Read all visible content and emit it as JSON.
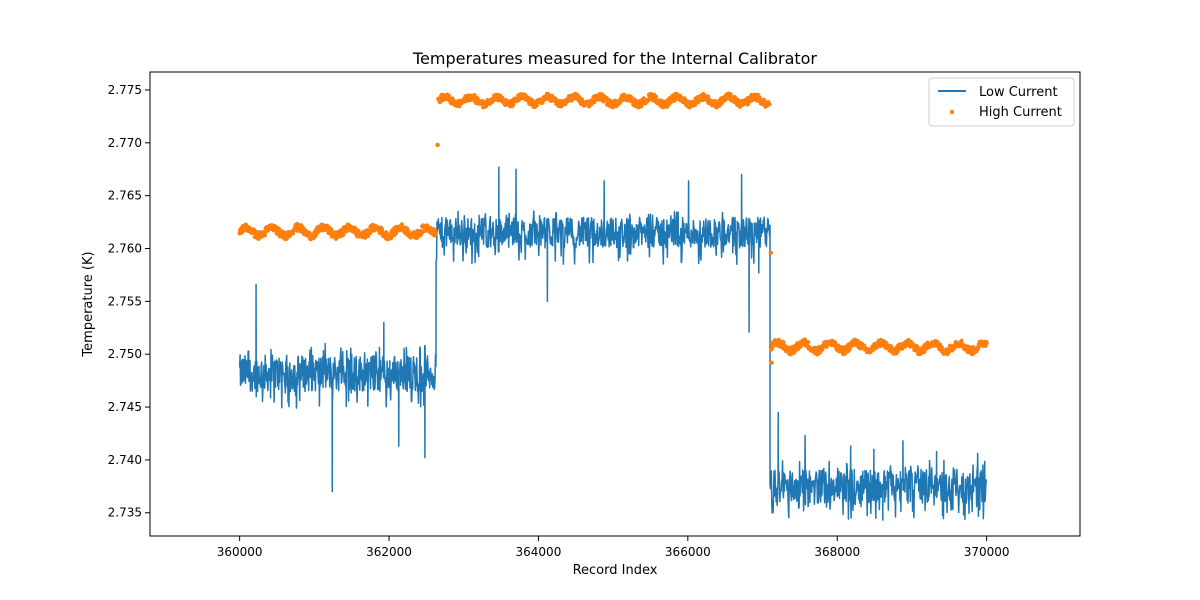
{
  "chart_data": {
    "type": "line",
    "title": "Temperatures measured for the Internal Calibrator",
    "xlabel": "Record Index",
    "ylabel": "Temperature (K)",
    "xlim": [
      358800,
      371250
    ],
    "ylim": [
      2.7328,
      2.7767
    ],
    "xticks": [
      360000,
      362000,
      364000,
      366000,
      368000,
      370000
    ],
    "yticks": [
      2.735,
      2.74,
      2.745,
      2.75,
      2.755,
      2.76,
      2.765,
      2.77,
      2.775
    ],
    "ytick_labels": [
      "2.735",
      "2.740",
      "2.745",
      "2.750",
      "2.755",
      "2.760",
      "2.765",
      "2.770",
      "2.775"
    ],
    "legend": {
      "location": "top-right",
      "entries": [
        "Low Current",
        "High Current"
      ]
    },
    "series": [
      {
        "name": "Low Current",
        "kind": "line",
        "color": "#1f77b4",
        "segments": [
          {
            "x_start": 360000,
            "x_end": 362630,
            "center": 2.7482,
            "band_low": 2.7465,
            "band_high": 2.75
          },
          {
            "x_start": 362630,
            "x_end": 367100,
            "center": 2.7615,
            "band_low": 2.7598,
            "band_high": 2.7627
          },
          {
            "x_start": 367100,
            "x_end": 370000,
            "center": 2.7375,
            "band_low": 2.7358,
            "band_high": 2.739
          }
        ],
        "spikes": [
          {
            "x": 361240,
            "y": 2.737
          },
          {
            "x": 360220,
            "y": 2.7566
          },
          {
            "x": 362130,
            "y": 2.7413
          },
          {
            "x": 362480,
            "y": 2.7402
          },
          {
            "x": 360760,
            "y": 2.7449
          },
          {
            "x": 361930,
            "y": 2.753
          },
          {
            "x": 363470,
            "y": 2.7677
          },
          {
            "x": 363700,
            "y": 2.7675
          },
          {
            "x": 364120,
            "y": 2.755
          },
          {
            "x": 364880,
            "y": 2.7664
          },
          {
            "x": 366010,
            "y": 2.7664
          },
          {
            "x": 366820,
            "y": 2.7521
          },
          {
            "x": 366720,
            "y": 2.767
          },
          {
            "x": 366950,
            "y": 2.7577
          },
          {
            "x": 367210,
            "y": 2.7445
          },
          {
            "x": 367570,
            "y": 2.7423
          },
          {
            "x": 368180,
            "y": 2.7413
          },
          {
            "x": 368490,
            "y": 2.741
          },
          {
            "x": 368880,
            "y": 2.7418
          },
          {
            "x": 369330,
            "y": 2.7408
          },
          {
            "x": 369880,
            "y": 2.7406
          },
          {
            "x": 368610,
            "y": 2.7343
          }
        ]
      },
      {
        "name": "High Current",
        "kind": "scatter",
        "color": "#ff7f0e",
        "segments": [
          {
            "x_start": 360000,
            "x_end": 362620,
            "center": 2.7616,
            "band_low": 2.761,
            "band_high": 2.7621
          },
          {
            "x_start": 362660,
            "x_end": 367090,
            "center": 2.774,
            "band_low": 2.7735,
            "band_high": 2.7745
          },
          {
            "x_start": 367120,
            "x_end": 370000,
            "center": 2.7507,
            "band_low": 2.7501,
            "band_high": 2.7512
          }
        ],
        "outliers": [
          {
            "x": 362650,
            "y": 2.7698
          },
          {
            "x": 367110,
            "y": 2.7596
          },
          {
            "x": 367120,
            "y": 2.7492
          }
        ]
      }
    ]
  }
}
